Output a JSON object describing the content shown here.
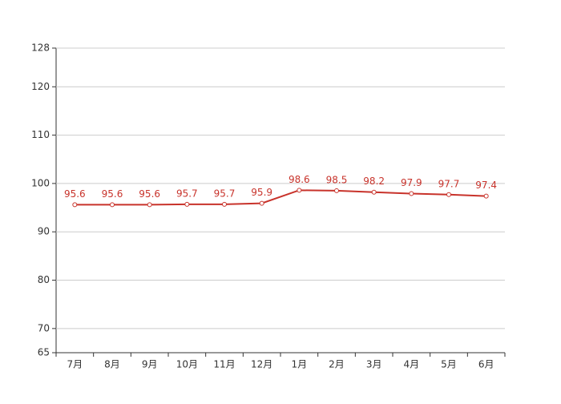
{
  "chart_data": {
    "type": "line",
    "categories": [
      "7月",
      "8月",
      "9月",
      "10月",
      "11月",
      "12月",
      "1月",
      "2月",
      "3月",
      "4月",
      "5月",
      "6月"
    ],
    "series": [
      {
        "color": "#c8332b",
        "values": [
          95.6,
          95.6,
          95.6,
          95.7,
          95.7,
          95.9,
          98.6,
          98.5,
          98.2,
          97.9,
          97.7,
          97.4
        ]
      }
    ],
    "ylim": [
      65,
      128
    ],
    "yticks": [
      65,
      70,
      80,
      90,
      100,
      110,
      120,
      128
    ],
    "grid": true,
    "data_labels": true
  }
}
